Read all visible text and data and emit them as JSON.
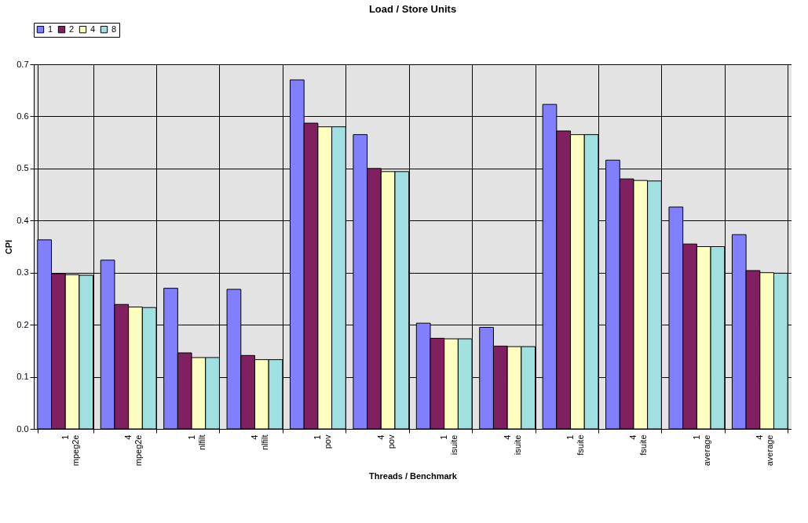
{
  "chart_data": {
    "type": "bar",
    "title": "Load / Store Units",
    "xlabel": "Threads / Benchmark",
    "ylabel": "CPI",
    "categories": [
      "1\nmpeg2e",
      "4\nmpeg2e",
      "1\nnlfilt",
      "4\nnlfilt",
      "1\npov",
      "4\npov",
      "1\nisuite",
      "4\nisuite",
      "1\nfsuite",
      "4\nfsuite",
      "1\naverage",
      "4\naverage"
    ],
    "series": [
      {
        "name": "1",
        "color": "#8080ff",
        "values": [
          0.363,
          0.324,
          0.27,
          0.268,
          0.67,
          0.565,
          0.203,
          0.195,
          0.623,
          0.516,
          0.426,
          0.373
        ]
      },
      {
        "name": "2",
        "color": "#802060",
        "values": [
          0.298,
          0.239,
          0.146,
          0.141,
          0.587,
          0.5,
          0.174,
          0.159,
          0.572,
          0.48,
          0.355,
          0.304
        ]
      },
      {
        "name": "4",
        "color": "#ffffc0",
        "values": [
          0.296,
          0.234,
          0.137,
          0.133,
          0.58,
          0.494,
          0.173,
          0.158,
          0.565,
          0.477,
          0.35,
          0.3
        ]
      },
      {
        "name": "8",
        "color": "#a0e0e0",
        "values": [
          0.295,
          0.233,
          0.137,
          0.133,
          0.58,
          0.494,
          0.173,
          0.158,
          0.565,
          0.476,
          0.35,
          0.299
        ]
      }
    ],
    "ylim": [
      0,
      0.7
    ],
    "yticks": [
      {
        "value": 0,
        "label": "0.0"
      },
      0.1,
      0.2,
      0.3,
      0.4,
      0.5,
      0.6,
      0.7
    ],
    "grid": true,
    "legend": "top"
  }
}
